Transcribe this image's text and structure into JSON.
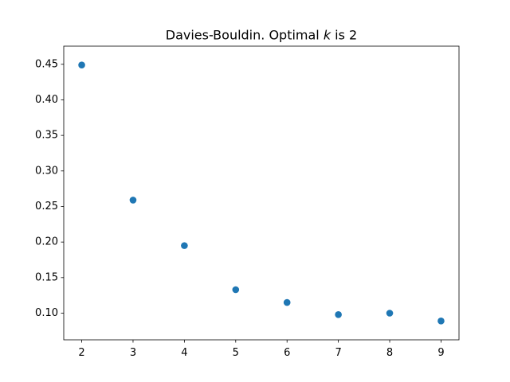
{
  "chart_data": {
    "type": "scatter",
    "title": {
      "prefix": "Davies-Bouldin. Optimal ",
      "variable": "k",
      "suffix": " is 2"
    },
    "xlabel": "",
    "ylabel": "",
    "x": [
      2,
      3,
      4,
      5,
      6,
      7,
      8,
      9
    ],
    "y": [
      0.449,
      0.259,
      0.195,
      0.133,
      0.115,
      0.098,
      0.1,
      0.089
    ],
    "xlim": [
      1.65,
      9.35
    ],
    "ylim": [
      0.0625,
      0.4755
    ],
    "xticks": [
      2,
      3,
      4,
      5,
      6,
      7,
      8,
      9
    ],
    "xtick_labels": [
      "2",
      "3",
      "4",
      "5",
      "6",
      "7",
      "8",
      "9"
    ],
    "yticks": [
      0.1,
      0.15,
      0.2,
      0.25,
      0.3,
      0.35,
      0.4,
      0.45
    ],
    "ytick_labels": [
      "0.10",
      "0.15",
      "0.20",
      "0.25",
      "0.30",
      "0.35",
      "0.40",
      "0.45"
    ],
    "marker_color": "#1f77b4",
    "grid": false,
    "legend": false
  }
}
